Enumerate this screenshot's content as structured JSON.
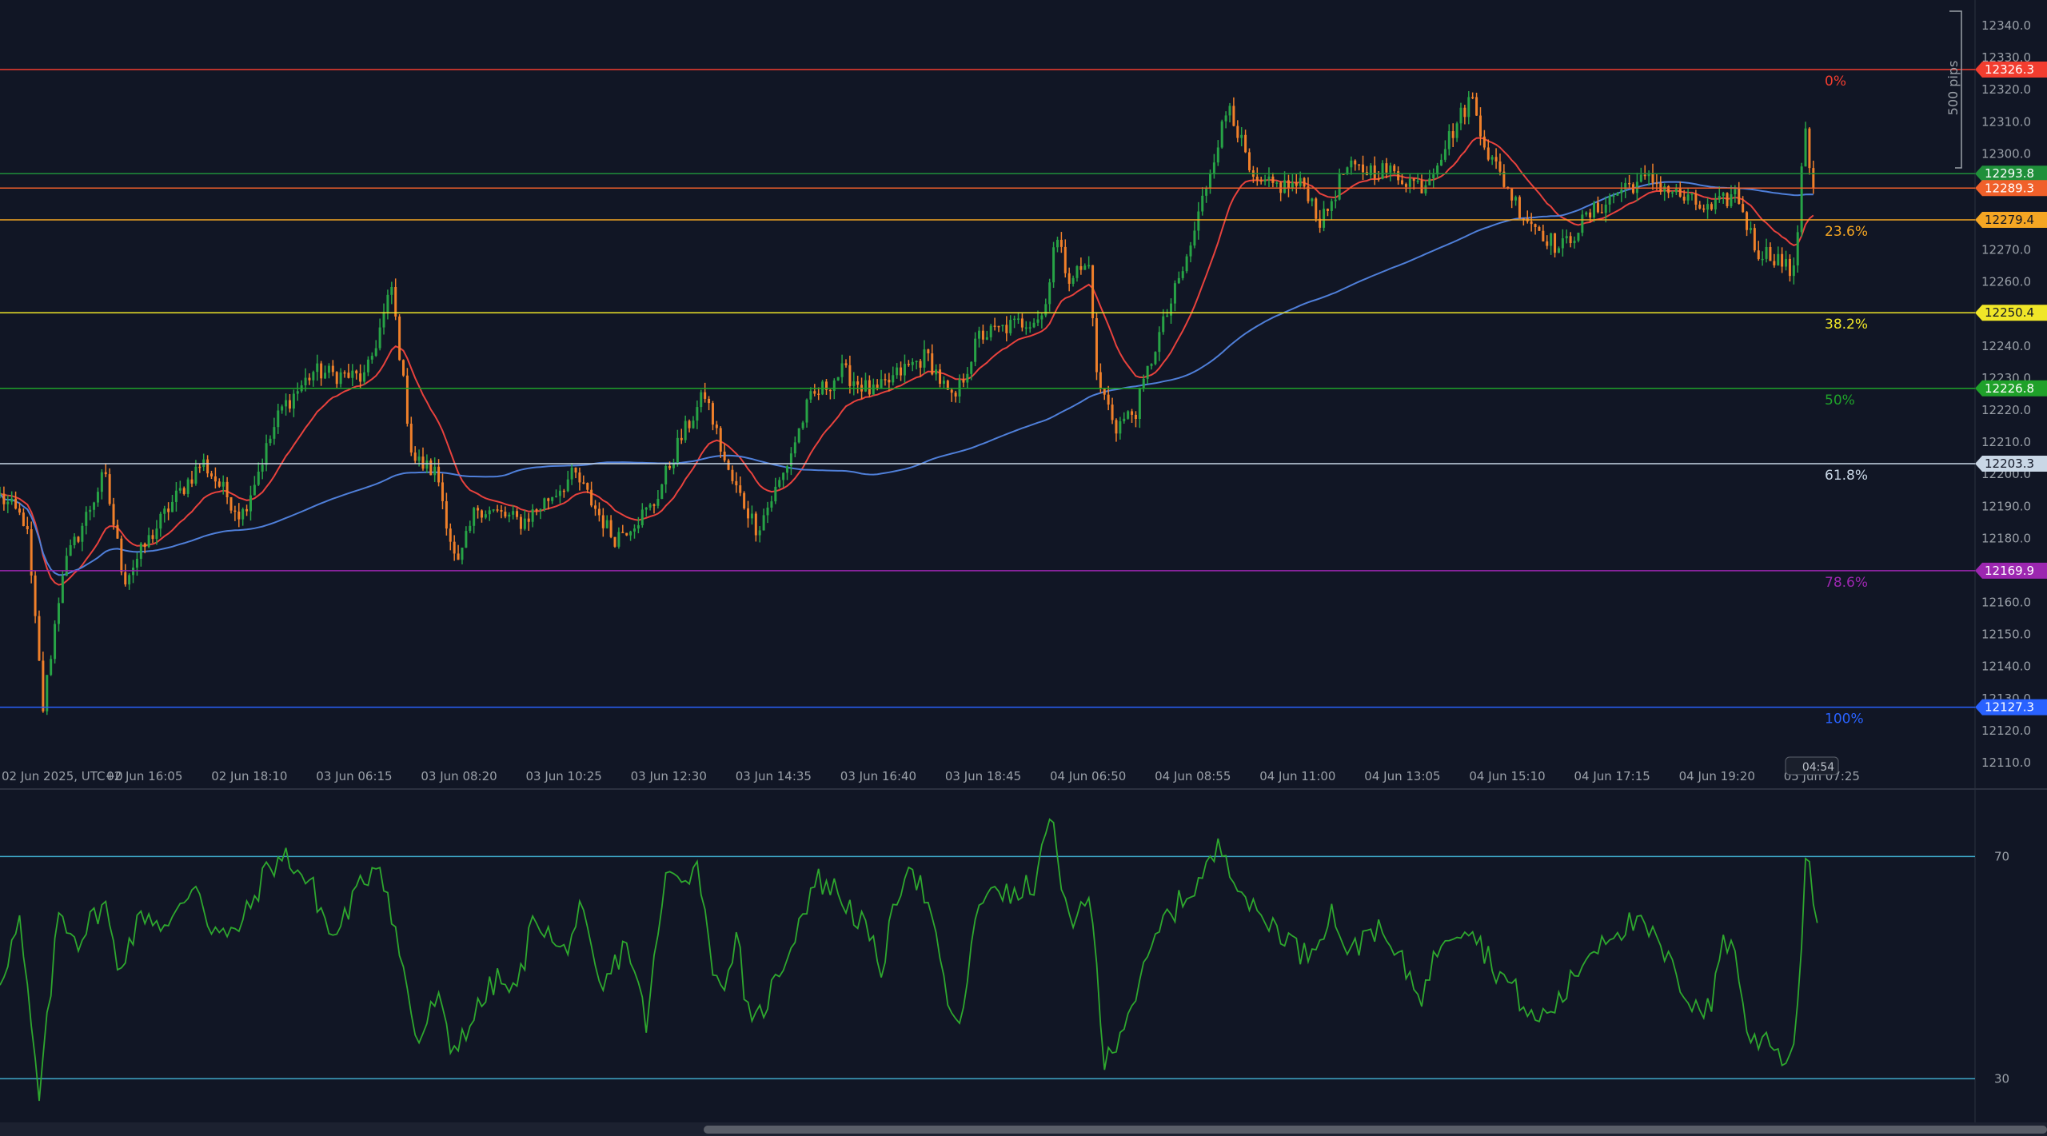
{
  "chart_data": {
    "type": "candlestick",
    "y_axis": {
      "min": 12104,
      "max": 12346,
      "tick_labels": [
        "12340.0",
        "12330.0",
        "12320.0",
        "12310.0",
        "12300.0",
        "12290.0",
        "12280.0",
        "12270.0",
        "12260.0",
        "12250.0",
        "12240.0",
        "12230.0",
        "12220.0",
        "12210.0",
        "12200.0",
        "12190.0",
        "12180.0",
        "12170.0",
        "12160.0",
        "12150.0",
        "12140.0",
        "12130.0",
        "12120.0",
        "12110.0"
      ],
      "tick_values": [
        12340,
        12330,
        12320,
        12310,
        12300,
        12290,
        12280,
        12270,
        12260,
        12250,
        12240,
        12230,
        12220,
        12210,
        12200,
        12190,
        12180,
        12170,
        12160,
        12150,
        12140,
        12130,
        12120,
        12110
      ]
    },
    "x_axis": {
      "labels": [
        "02 Jun 2025, UTC+0",
        "02 Jun 16:05",
        "02 Jun 18:10",
        "03 Jun 06:15",
        "03 Jun 08:20",
        "03 Jun 10:25",
        "03 Jun 12:30",
        "03 Jun 14:35",
        "03 Jun 16:40",
        "03 Jun 18:45",
        "04 Jun 06:50",
        "04 Jun 08:55",
        "04 Jun 11:00",
        "04 Jun 13:05",
        "04 Jun 15:10",
        "04 Jun 17:15",
        "04 Jun 19:20",
        "05 Jun 07:25"
      ],
      "countdown": "04:54"
    },
    "range_label": "500 pips",
    "fibonacci": [
      {
        "label": "0%",
        "price": 12326.3,
        "price_label": "12326.3",
        "color": "#f23d2f"
      },
      {
        "label": "23.6%",
        "price": 12279.4,
        "price_label": "12279.4",
        "color": "#f5a623"
      },
      {
        "label": "38.2%",
        "price": 12250.4,
        "price_label": "12250.4",
        "color": "#f0e628"
      },
      {
        "label": "50%",
        "price": 12226.8,
        "price_label": "12226.8",
        "color": "#1fa12a"
      },
      {
        "label": "61.8%",
        "price": 12203.3,
        "price_label": "12203.3",
        "color": "#c9d7e6"
      },
      {
        "label": "78.6%",
        "price": 12169.9,
        "price_label": "12169.9",
        "color": "#9c27b0"
      },
      {
        "label": "100%",
        "price": 12127.3,
        "price_label": "12127.3",
        "color": "#2962ff"
      }
    ],
    "price_lines": [
      {
        "price": 12293.8,
        "price_label": "12293.8",
        "color": "#1f8f3a"
      },
      {
        "price": 12289.3,
        "price_label": "12289.3",
        "color": "#f0602a"
      }
    ],
    "series_control_points": [
      [
        0,
        12193
      ],
      [
        20,
        12185
      ],
      [
        33,
        12127
      ],
      [
        48,
        12170
      ],
      [
        80,
        12200
      ],
      [
        95,
        12167
      ],
      [
        130,
        12190
      ],
      [
        155,
        12204
      ],
      [
        185,
        12187
      ],
      [
        215,
        12220
      ],
      [
        240,
        12232
      ],
      [
        280,
        12230
      ],
      [
        300,
        12258
      ],
      [
        316,
        12205
      ],
      [
        335,
        12200
      ],
      [
        350,
        12170
      ],
      [
        365,
        12190
      ],
      [
        400,
        12185
      ],
      [
        440,
        12200
      ],
      [
        470,
        12180
      ],
      [
        500,
        12190
      ],
      [
        520,
        12210
      ],
      [
        540,
        12225
      ],
      [
        558,
        12200
      ],
      [
        580,
        12183
      ],
      [
        600,
        12200
      ],
      [
        620,
        12223
      ],
      [
        645,
        12232
      ],
      [
        670,
        12225
      ],
      [
        690,
        12232
      ],
      [
        710,
        12237
      ],
      [
        730,
        12222
      ],
      [
        750,
        12243
      ],
      [
        780,
        12247
      ],
      [
        800,
        12250
      ],
      [
        808,
        12275
      ],
      [
        818,
        12262
      ],
      [
        835,
        12265
      ],
      [
        840,
        12230
      ],
      [
        855,
        12215
      ],
      [
        870,
        12220
      ],
      [
        885,
        12240
      ],
      [
        910,
        12268
      ],
      [
        930,
        12300
      ],
      [
        942,
        12316
      ],
      [
        960,
        12290
      ],
      [
        1000,
        12290
      ],
      [
        1012,
        12278
      ],
      [
        1030,
        12295
      ],
      [
        1060,
        12295
      ],
      [
        1090,
        12290
      ],
      [
        1110,
        12305
      ],
      [
        1127,
        12318
      ],
      [
        1140,
        12300
      ],
      [
        1165,
        12282
      ],
      [
        1195,
        12270
      ],
      [
        1215,
        12280
      ],
      [
        1245,
        12290
      ],
      [
        1265,
        12292
      ],
      [
        1290,
        12286
      ],
      [
        1310,
        12282
      ],
      [
        1330,
        12288
      ],
      [
        1345,
        12270
      ],
      [
        1360,
        12268
      ],
      [
        1375,
        12262
      ],
      [
        1382,
        12312
      ],
      [
        1388,
        12290
      ]
    ],
    "moving_averages": [
      {
        "name": "MA fast",
        "color": "#e8423d"
      },
      {
        "name": "MA slow",
        "color": "#4f7fd9"
      }
    ],
    "oscillator": {
      "type": "line",
      "levels": [
        70,
        30
      ],
      "level_labels": [
        "70",
        "30"
      ],
      "range": [
        23,
        81
      ],
      "line_color": "#2ea82e",
      "control_points": [
        [
          0,
          48
        ],
        [
          15,
          58
        ],
        [
          30,
          26
        ],
        [
          45,
          60
        ],
        [
          60,
          55
        ],
        [
          80,
          62
        ],
        [
          90,
          50
        ],
        [
          110,
          60
        ],
        [
          130,
          57
        ],
        [
          150,
          66
        ],
        [
          160,
          58
        ],
        [
          175,
          55
        ],
        [
          190,
          60
        ],
        [
          205,
          68
        ],
        [
          220,
          70
        ],
        [
          240,
          64
        ],
        [
          255,
          55
        ],
        [
          270,
          62
        ],
        [
          290,
          70
        ],
        [
          300,
          60
        ],
        [
          310,
          48
        ],
        [
          320,
          36
        ],
        [
          335,
          45
        ],
        [
          345,
          35
        ],
        [
          360,
          40
        ],
        [
          380,
          48
        ],
        [
          395,
          45
        ],
        [
          410,
          60
        ],
        [
          430,
          52
        ],
        [
          445,
          60
        ],
        [
          460,
          45
        ],
        [
          480,
          55
        ],
        [
          495,
          40
        ],
        [
          510,
          66
        ],
        [
          535,
          68
        ],
        [
          550,
          45
        ],
        [
          565,
          55
        ],
        [
          575,
          38
        ],
        [
          595,
          48
        ],
        [
          615,
          60
        ],
        [
          625,
          66
        ],
        [
          640,
          64
        ],
        [
          660,
          58
        ],
        [
          675,
          50
        ],
        [
          695,
          70
        ],
        [
          710,
          62
        ],
        [
          725,
          45
        ],
        [
          735,
          38
        ],
        [
          745,
          56
        ],
        [
          760,
          66
        ],
        [
          775,
          62
        ],
        [
          795,
          66
        ],
        [
          805,
          80
        ],
        [
          810,
          68
        ],
        [
          820,
          56
        ],
        [
          835,
          65
        ],
        [
          845,
          32
        ],
        [
          860,
          40
        ],
        [
          875,
          48
        ],
        [
          890,
          58
        ],
        [
          905,
          62
        ],
        [
          920,
          66
        ],
        [
          935,
          72
        ],
        [
          948,
          66
        ],
        [
          960,
          60
        ],
        [
          980,
          57
        ],
        [
          1000,
          52
        ],
        [
          1020,
          60
        ],
        [
          1035,
          52
        ],
        [
          1050,
          58
        ],
        [
          1070,
          52
        ],
        [
          1090,
          45
        ],
        [
          1105,
          56
        ],
        [
          1125,
          58
        ],
        [
          1145,
          50
        ],
        [
          1160,
          46
        ],
        [
          1175,
          40
        ],
        [
          1195,
          44
        ],
        [
          1215,
          52
        ],
        [
          1230,
          56
        ],
        [
          1250,
          58
        ],
        [
          1265,
          56
        ],
        [
          1280,
          50
        ],
        [
          1295,
          44
        ],
        [
          1310,
          42
        ],
        [
          1320,
          56
        ],
        [
          1330,
          52
        ],
        [
          1340,
          36
        ],
        [
          1355,
          38
        ],
        [
          1370,
          32
        ],
        [
          1378,
          45
        ],
        [
          1383,
          70
        ],
        [
          1392,
          60
        ]
      ]
    }
  }
}
